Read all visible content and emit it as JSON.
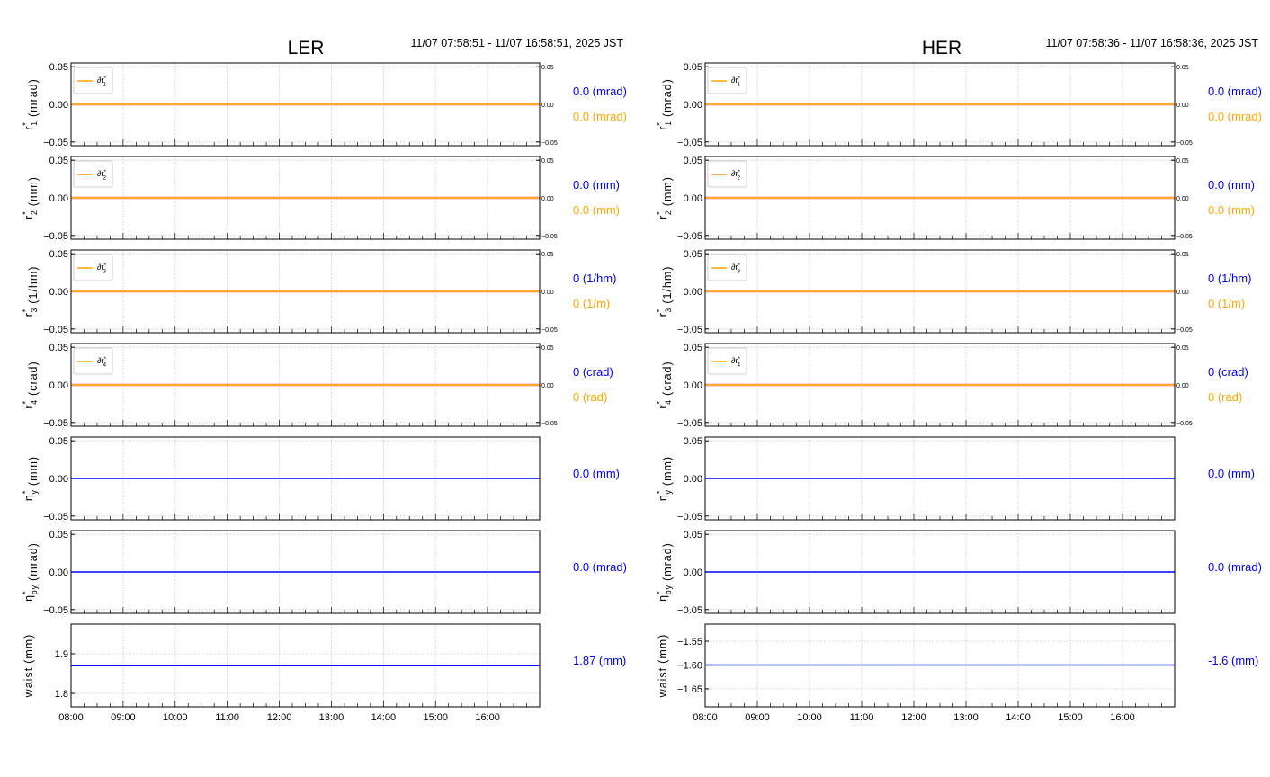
{
  "chart_data": [
    {
      "type": "line",
      "title": "LER",
      "time_range": "11/07 07:58:51 - 11/07 16:58:51, 2025 JST",
      "x_ticks": [
        "08:00",
        "09:00",
        "10:00",
        "11:00",
        "12:00",
        "13:00",
        "14:00",
        "15:00",
        "16:00"
      ],
      "xlim": [
        "08:00",
        "17:00"
      ],
      "grid": true,
      "panels": [
        {
          "ylabel": {
            "base": "r",
            "sup": "*",
            "sub": "1",
            "unit": "(mrad)"
          },
          "legend": {
            "base": "∂r",
            "sup": "*",
            "sub": "1"
          },
          "ylim": [
            -0.055,
            0.055
          ],
          "yticks": [
            "0.05",
            "0.00",
            "−0.05"
          ],
          "yticks_values": [
            0.05,
            0,
            -0.05
          ],
          "right_ticks": [
            "0.05",
            "0.00",
            "−0.05"
          ],
          "series": [
            {
              "color": "#ffa500",
              "value": 0.0
            },
            {
              "color": "#f08080",
              "value": 0.0
            }
          ],
          "readouts": [
            {
              "text": "0.0 (mrad)",
              "color": "#0000ff"
            },
            {
              "text": "0.0 (mrad)",
              "color": "#ffa500"
            }
          ]
        },
        {
          "ylabel": {
            "base": "r",
            "sup": "*",
            "sub": "2",
            "unit": "(mm)"
          },
          "legend": {
            "base": "∂r",
            "sup": "*",
            "sub": "2"
          },
          "ylim": [
            -0.055,
            0.055
          ],
          "yticks": [
            "0.05",
            "0.00",
            "−0.05"
          ],
          "yticks_values": [
            0.05,
            0,
            -0.05
          ],
          "right_ticks": [
            "0.05",
            "0.00",
            "−0.05"
          ],
          "series": [
            {
              "color": "#ffa500",
              "value": 0.0
            },
            {
              "color": "#f08080",
              "value": 0.0
            }
          ],
          "readouts": [
            {
              "text": "0.0 (mm)",
              "color": "#0000ff"
            },
            {
              "text": "0.0 (mm)",
              "color": "#ffa500"
            }
          ]
        },
        {
          "ylabel": {
            "base": "r",
            "sup": "*",
            "sub": "3",
            "unit": "(1/hm)"
          },
          "legend": {
            "base": "∂r",
            "sup": "*",
            "sub": "3"
          },
          "ylim": [
            -0.055,
            0.055
          ],
          "yticks": [
            "0.05",
            "0.00",
            "−0.05"
          ],
          "yticks_values": [
            0.05,
            0,
            -0.05
          ],
          "right_ticks": [
            "0.05",
            "0.00",
            "−0.05"
          ],
          "series": [
            {
              "color": "#ffa500",
              "value": 0.0
            },
            {
              "color": "#f08080",
              "value": 0.0
            }
          ],
          "readouts": [
            {
              "text": "0 (1/hm)",
              "color": "#0000ff"
            },
            {
              "text": "0 (1/m)",
              "color": "#ffa500"
            }
          ]
        },
        {
          "ylabel": {
            "base": "r",
            "sup": "*",
            "sub": "4",
            "unit": "(crad)"
          },
          "legend": {
            "base": "∂r",
            "sup": "*",
            "sub": "4"
          },
          "ylim": [
            -0.055,
            0.055
          ],
          "yticks": [
            "0.05",
            "0.00",
            "−0.05"
          ],
          "yticks_values": [
            0.05,
            0,
            -0.05
          ],
          "right_ticks": [
            "0.05",
            "0.00",
            "−0.05"
          ],
          "series": [
            {
              "color": "#ffa500",
              "value": 0.0
            },
            {
              "color": "#f08080",
              "value": 0.0
            }
          ],
          "readouts": [
            {
              "text": "0 (crad)",
              "color": "#0000ff"
            },
            {
              "text": "0 (rad)",
              "color": "#ffa500"
            }
          ]
        },
        {
          "ylabel": {
            "base": "η",
            "sup": "*",
            "sub": "y",
            "unit": "(mm)"
          },
          "ylim": [
            -0.055,
            0.055
          ],
          "yticks": [
            "0.05",
            "0.00",
            "−0.05"
          ],
          "yticks_values": [
            0.05,
            0,
            -0.05
          ],
          "series": [
            {
              "color": "#0000ff",
              "value": 0.0
            }
          ],
          "readouts": [
            {
              "text": "0.0 (mm)",
              "color": "#0000ff"
            }
          ]
        },
        {
          "ylabel": {
            "base": "η",
            "sup": "*",
            "sub": "py",
            "unit": "(mrad)"
          },
          "ylim": [
            -0.055,
            0.055
          ],
          "yticks": [
            "0.05",
            "0.00",
            "−0.05"
          ],
          "yticks_values": [
            0.05,
            0,
            -0.05
          ],
          "series": [
            {
              "color": "#0000ff",
              "value": 0.0
            }
          ],
          "readouts": [
            {
              "text": "0.0 (mrad)",
              "color": "#0000ff"
            }
          ]
        },
        {
          "ylabel": {
            "base": "waist",
            "sup": "",
            "sub": "",
            "unit": "(mm)"
          },
          "ylim": [
            1.766,
            1.975
          ],
          "yticks": [
            "1.9",
            "1.8"
          ],
          "yticks_values": [
            1.9,
            1.8
          ],
          "series": [
            {
              "color": "#0000ff",
              "value": 1.87
            }
          ],
          "readouts": [
            {
              "text": "1.87 (mm)",
              "color": "#0000ff"
            }
          ]
        }
      ]
    },
    {
      "type": "line",
      "title": "HER",
      "time_range": "11/07 07:58:36 - 11/07 16:58:36, 2025 JST",
      "x_ticks": [
        "08:00",
        "09:00",
        "10:00",
        "11:00",
        "12:00",
        "13:00",
        "14:00",
        "15:00",
        "16:00"
      ],
      "xlim": [
        "08:00",
        "17:00"
      ],
      "grid": true,
      "panels": [
        {
          "ylabel": {
            "base": "r",
            "sup": "*",
            "sub": "1",
            "unit": "(mrad)"
          },
          "legend": {
            "base": "∂r",
            "sup": "*",
            "sub": "1"
          },
          "ylim": [
            -0.055,
            0.055
          ],
          "yticks": [
            "0.05",
            "0.00",
            "−0.05"
          ],
          "yticks_values": [
            0.05,
            0,
            -0.05
          ],
          "right_ticks": [
            "0.05",
            "0.00",
            "−0.05"
          ],
          "series": [
            {
              "color": "#ffa500",
              "value": 0.0
            },
            {
              "color": "#f08080",
              "value": 0.0
            }
          ],
          "readouts": [
            {
              "text": "0.0 (mrad)",
              "color": "#0000ff"
            },
            {
              "text": "0.0 (mrad)",
              "color": "#ffa500"
            }
          ]
        },
        {
          "ylabel": {
            "base": "r",
            "sup": "*",
            "sub": "2",
            "unit": "(mm)"
          },
          "legend": {
            "base": "∂r",
            "sup": "*",
            "sub": "2"
          },
          "ylim": [
            -0.055,
            0.055
          ],
          "yticks": [
            "0.05",
            "0.00",
            "−0.05"
          ],
          "yticks_values": [
            0.05,
            0,
            -0.05
          ],
          "right_ticks": [
            "0.05",
            "0.00",
            "−0.05"
          ],
          "series": [
            {
              "color": "#ffa500",
              "value": 0.0
            },
            {
              "color": "#f08080",
              "value": 0.0
            }
          ],
          "readouts": [
            {
              "text": "0.0 (mm)",
              "color": "#0000ff"
            },
            {
              "text": "0.0 (mm)",
              "color": "#ffa500"
            }
          ]
        },
        {
          "ylabel": {
            "base": "r",
            "sup": "*",
            "sub": "3",
            "unit": "(1/hm)"
          },
          "legend": {
            "base": "∂r",
            "sup": "*",
            "sub": "3"
          },
          "ylim": [
            -0.055,
            0.055
          ],
          "yticks": [
            "0.05",
            "0.00",
            "−0.05"
          ],
          "yticks_values": [
            0.05,
            0,
            -0.05
          ],
          "right_ticks": [
            "0.05",
            "0.00",
            "−0.05"
          ],
          "series": [
            {
              "color": "#ffa500",
              "value": 0.0
            },
            {
              "color": "#f08080",
              "value": 0.0
            }
          ],
          "readouts": [
            {
              "text": "0 (1/hm)",
              "color": "#0000ff"
            },
            {
              "text": "0 (1/m)",
              "color": "#ffa500"
            }
          ]
        },
        {
          "ylabel": {
            "base": "r",
            "sup": "*",
            "sub": "4",
            "unit": "(crad)"
          },
          "legend": {
            "base": "∂r",
            "sup": "*",
            "sub": "4"
          },
          "ylim": [
            -0.055,
            0.055
          ],
          "yticks": [
            "0.05",
            "0.00",
            "−0.05"
          ],
          "yticks_values": [
            0.05,
            0,
            -0.05
          ],
          "right_ticks": [
            "0.05",
            "0.00",
            "−0.05"
          ],
          "series": [
            {
              "color": "#ffa500",
              "value": 0.0
            },
            {
              "color": "#f08080",
              "value": 0.0
            }
          ],
          "readouts": [
            {
              "text": "0 (crad)",
              "color": "#0000ff"
            },
            {
              "text": "0 (rad)",
              "color": "#ffa500"
            }
          ]
        },
        {
          "ylabel": {
            "base": "η",
            "sup": "*",
            "sub": "y",
            "unit": "(mm)"
          },
          "ylim": [
            -0.055,
            0.055
          ],
          "yticks": [
            "0.05",
            "0.00",
            "−0.05"
          ],
          "yticks_values": [
            0.05,
            0,
            -0.05
          ],
          "series": [
            {
              "color": "#0000ff",
              "value": 0.0
            }
          ],
          "readouts": [
            {
              "text": "0.0 (mm)",
              "color": "#0000ff"
            }
          ]
        },
        {
          "ylabel": {
            "base": "η",
            "sup": "*",
            "sub": "py",
            "unit": "(mrad)"
          },
          "ylim": [
            -0.055,
            0.055
          ],
          "yticks": [
            "0.05",
            "0.00",
            "−0.05"
          ],
          "yticks_values": [
            0.05,
            0,
            -0.05
          ],
          "series": [
            {
              "color": "#0000ff",
              "value": 0.0
            }
          ],
          "readouts": [
            {
              "text": "0.0 (mrad)",
              "color": "#0000ff"
            }
          ]
        },
        {
          "ylabel": {
            "base": "waist",
            "sup": "",
            "sub": "",
            "unit": "(mm)"
          },
          "ylim": [
            -1.688,
            -1.514
          ],
          "yticks": [
            "−1.55",
            "−1.60",
            "−1.65"
          ],
          "yticks_values": [
            -1.55,
            -1.6,
            -1.65
          ],
          "series": [
            {
              "color": "#0000ff",
              "value": -1.6
            }
          ],
          "readouts": [
            {
              "text": "-1.6 (mm)",
              "color": "#0000ff"
            }
          ]
        }
      ]
    }
  ]
}
